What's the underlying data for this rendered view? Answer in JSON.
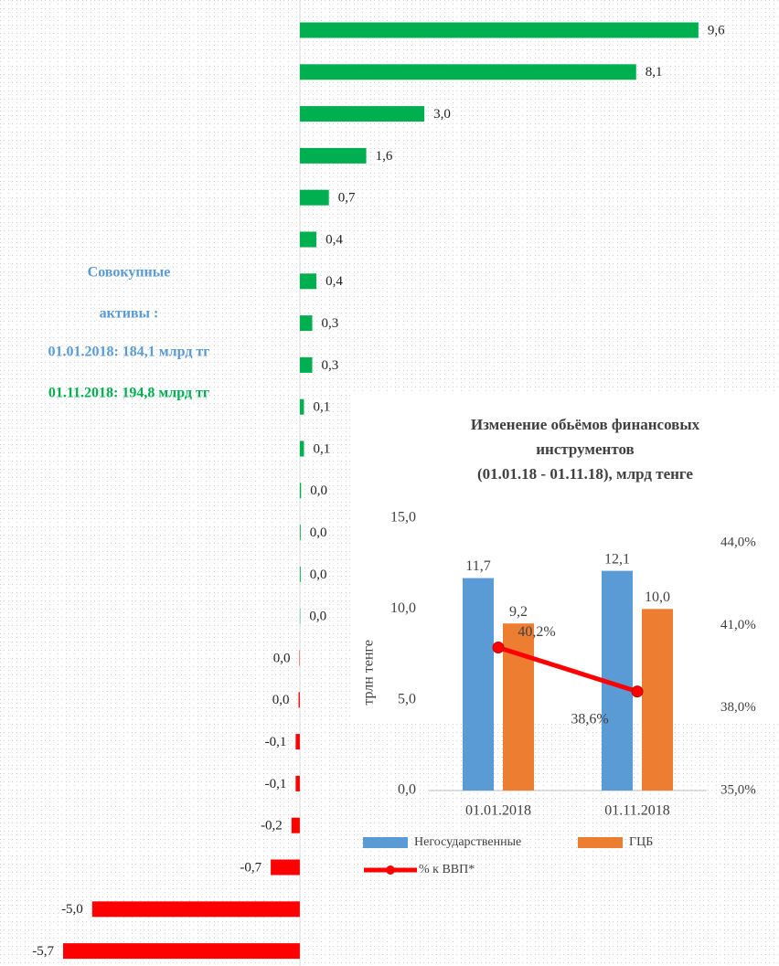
{
  "chart_data": [
    {
      "type": "bar",
      "orientation": "horizontal",
      "values": [
        9.6,
        8.1,
        3.0,
        1.6,
        0.7,
        0.4,
        0.4,
        0.3,
        0.3,
        0.1,
        0.1,
        0.03,
        0.02,
        0.02,
        0.01,
        -0.01,
        -0.03,
        -0.1,
        -0.1,
        -0.2,
        -0.7,
        -5.0,
        -5.7
      ],
      "value_labels": [
        "9,6",
        "8,1",
        "3,0",
        "1,6",
        "0,7",
        "0,4",
        "0,4",
        "0,3",
        "0,3",
        "0,1",
        "0,1",
        "0,0",
        "0,0",
        "0,0",
        "0,0",
        "0,0",
        "0,0",
        "-0,1",
        "-0,1",
        "-0,2",
        "-0,7",
        "-5,0",
        "-5,7"
      ],
      "positive_color": "#00b050",
      "negative_color": "#ff0000",
      "xlim": [
        -7.22,
        11.54
      ],
      "annotations": [
        "Совокупные",
        "активы :",
        "01.01.2018: 184,1 млрд тг",
        "01.11.2018: 194,8 млрд тг"
      ]
    },
    {
      "type": "bar_line",
      "title": [
        "Изменение обьёмов финансовых",
        "инструментов",
        "(01.01.18 - 01.11.18), млрд тенге"
      ],
      "ylabel": "трлн тенге",
      "categories": [
        "01.01.2018",
        "01.11.2018"
      ],
      "series": [
        {
          "name": "Негосударственные",
          "color": "#5b9bd5",
          "values": [
            11.7,
            12.1
          ],
          "value_labels": [
            "11,7",
            "12,1"
          ]
        },
        {
          "name": "ГЦБ",
          "color": "#ed7d31",
          "values": [
            9.2,
            10.0
          ],
          "value_labels": [
            "9,2",
            "10,0"
          ]
        },
        {
          "name": "% к ВВП*",
          "color": "#ff0000",
          "type": "line",
          "axis": "y2",
          "values": [
            40.2,
            38.6
          ],
          "value_labels": [
            "40,2%",
            "38,6%"
          ]
        }
      ],
      "ylim": [
        0,
        15
      ],
      "yticks": [
        {
          "value": 0,
          "label": "0,0"
        },
        {
          "value": 5,
          "label": "5,0"
        },
        {
          "value": 10,
          "label": "10,0"
        },
        {
          "value": 15,
          "label": "15,0"
        }
      ],
      "y2lim": [
        35,
        44.9
      ],
      "y2ticks": [
        {
          "value": 35,
          "label": "35,0%"
        },
        {
          "value": 38,
          "label": "38,0%"
        },
        {
          "value": 41,
          "label": "41,0%"
        },
        {
          "value": 44,
          "label": "44,0%"
        }
      ],
      "legend": "bottom"
    }
  ]
}
